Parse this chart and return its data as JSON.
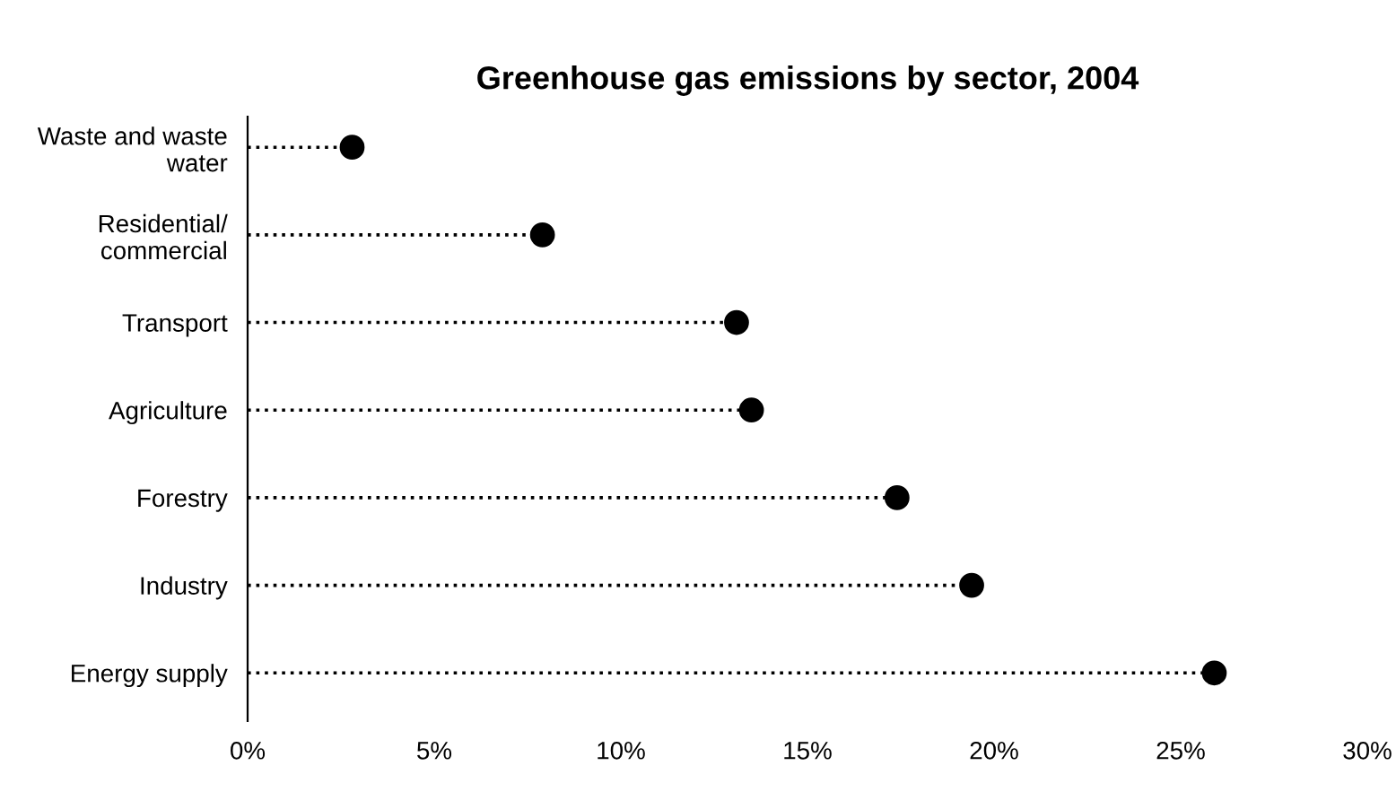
{
  "chart_data": {
    "type": "lollipop",
    "orientation": "horizontal",
    "title": "Greenhouse gas emissions by sector, 2004",
    "categories": [
      "Waste and waste\nwater",
      "Residential/\ncommercial",
      "Transport",
      "Agriculture",
      "Forestry",
      "Industry",
      "Energy supply"
    ],
    "values": [
      2.8,
      7.9,
      13.1,
      13.5,
      17.4,
      19.4,
      25.9
    ],
    "color": "#000000",
    "marker": "circle",
    "line_style": "dotted",
    "xlim": [
      0,
      30
    ],
    "xticks": [
      {
        "value": 0,
        "label": "0%"
      },
      {
        "value": 5,
        "label": "5%"
      },
      {
        "value": 10,
        "label": "10%"
      },
      {
        "value": 15,
        "label": "15%"
      },
      {
        "value": 20,
        "label": "20%"
      },
      {
        "value": 25,
        "label": "25%"
      },
      {
        "value": 30,
        "label": "30%"
      }
    ]
  }
}
